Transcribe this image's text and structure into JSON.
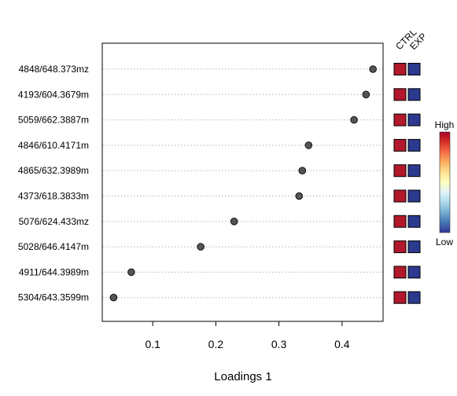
{
  "chart_data": {
    "type": "scatter",
    "title": "",
    "xlabel": "Loadings 1",
    "ylabel": "",
    "xlim": [
      0.02,
      0.465
    ],
    "xticks": [
      0.1,
      0.2,
      0.3,
      0.4
    ],
    "xtick_labels": [
      "0.1",
      "0.2",
      "0.3",
      "0.4"
    ],
    "grid": "horizontal dotted",
    "categories": [
      "4848/648.373mz",
      "4193/604.3679m",
      "5059/662.3887m",
      "4846/610.4171m",
      "4865/632.3989m",
      "4373/618.3833m",
      "5076/624.433mz",
      "5028/646.4147m",
      "4911/644.3989m",
      "5304/643.3599m"
    ],
    "values": [
      0.449,
      0.438,
      0.419,
      0.347,
      0.337,
      0.332,
      0.229,
      0.176,
      0.066,
      0.038
    ],
    "groups": [
      "CTRL",
      "EXP"
    ],
    "group_colors": [
      [
        "#b2182b",
        "#2b3a8f"
      ],
      [
        "#b2182b",
        "#2b3a8f"
      ],
      [
        "#b2182b",
        "#2b3a8f"
      ],
      [
        "#b2182b",
        "#2b3a8f"
      ],
      [
        "#b2182b",
        "#2b3a8f"
      ],
      [
        "#b2182b",
        "#2b3a8f"
      ],
      [
        "#b2182b",
        "#2b3a8f"
      ],
      [
        "#b2182b",
        "#2b3a8f"
      ],
      [
        "#b2182b",
        "#2b3a8f"
      ],
      [
        "#b2182b",
        "#2b3a8f"
      ]
    ],
    "color_scale": {
      "high_label": "High",
      "low_label": "Low",
      "colors": [
        "#a50026",
        "#d73027",
        "#f46d43",
        "#fdae61",
        "#fee090",
        "#ffffbf",
        "#e0f3f8",
        "#abd9e9",
        "#74add1",
        "#4575b4",
        "#313695"
      ]
    },
    "point_color": "#555555"
  }
}
